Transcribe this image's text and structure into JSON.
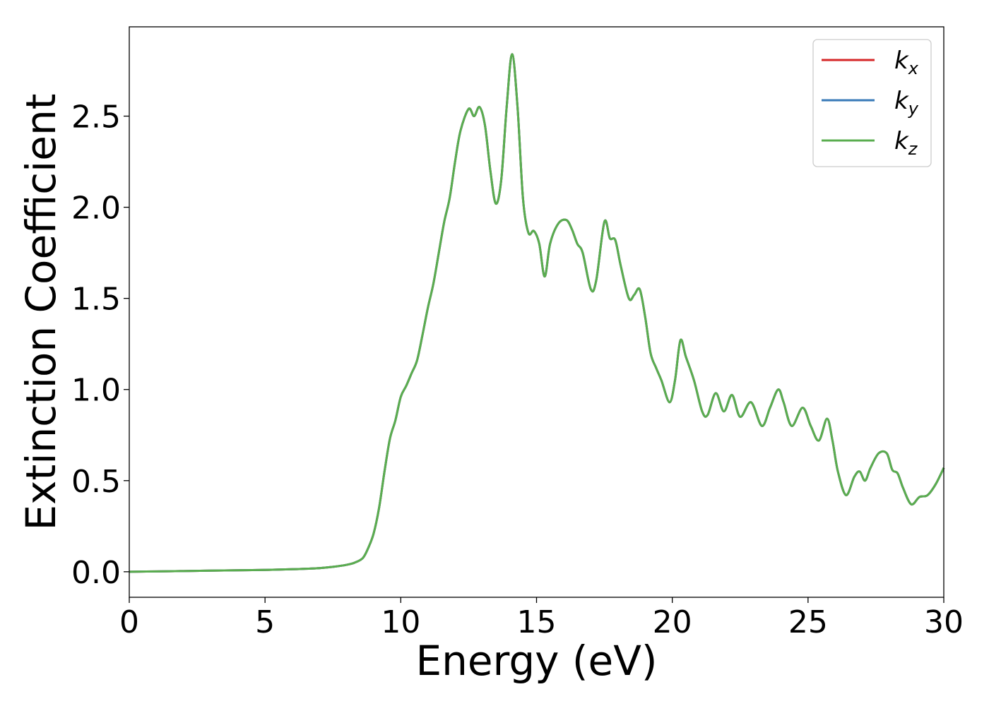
{
  "chart_data": {
    "type": "line",
    "xlabel": "Energy (eV)",
    "ylabel": "Extinction Coefficient",
    "xlim": [
      0,
      30
    ],
    "ylim": [
      -0.14,
      2.99
    ],
    "xticks": [
      0,
      5,
      10,
      15,
      20,
      25,
      30
    ],
    "yticks": [
      0.0,
      0.5,
      1.0,
      1.5,
      2.0,
      2.5
    ],
    "xtick_labels": [
      "0",
      "5",
      "10",
      "15",
      "20",
      "25",
      "30"
    ],
    "ytick_labels": [
      "0.0",
      "0.5",
      "1.0",
      "1.5",
      "2.0",
      "2.5"
    ],
    "grid": false,
    "legend_position": "top-right",
    "series": [
      {
        "name": "k_x",
        "label_main": "k",
        "label_sub": "x",
        "color": "#d62728"
      },
      {
        "name": "k_y",
        "label_main": "k",
        "label_sub": "y",
        "color": "#3a7bb8"
      },
      {
        "name": "k_z",
        "label_main": "k",
        "label_sub": "z",
        "color": "#5aad4f"
      }
    ],
    "x": [
      0,
      1,
      2,
      3,
      4,
      5,
      6,
      7,
      7.5,
      8,
      8.3,
      8.6,
      8.8,
      9.0,
      9.2,
      9.4,
      9.6,
      9.8,
      10.0,
      10.2,
      10.4,
      10.6,
      10.8,
      11.0,
      11.2,
      11.4,
      11.6,
      11.8,
      12.0,
      12.2,
      12.5,
      12.7,
      12.9,
      13.1,
      13.3,
      13.5,
      13.7,
      13.9,
      14.1,
      14.3,
      14.5,
      14.7,
      14.9,
      15.1,
      15.3,
      15.5,
      15.8,
      16.1,
      16.3,
      16.5,
      16.7,
      17.0,
      17.2,
      17.5,
      17.7,
      17.9,
      18.1,
      18.4,
      18.6,
      18.8,
      19.0,
      19.2,
      19.4,
      19.6,
      19.9,
      20.1,
      20.3,
      20.5,
      20.8,
      21.1,
      21.3,
      21.6,
      21.9,
      22.2,
      22.5,
      22.9,
      23.3,
      23.6,
      23.9,
      24.1,
      24.4,
      24.8,
      25.1,
      25.4,
      25.7,
      25.9,
      26.1,
      26.4,
      26.7,
      26.9,
      27.1,
      27.3,
      27.6,
      27.9,
      28.1,
      28.3,
      28.5,
      28.8,
      29.1,
      29.4,
      29.7,
      30.0
    ],
    "values": [
      0.0,
      0.002,
      0.004,
      0.006,
      0.008,
      0.01,
      0.014,
      0.02,
      0.027,
      0.038,
      0.05,
      0.075,
      0.13,
      0.21,
      0.35,
      0.55,
      0.73,
      0.83,
      0.96,
      1.02,
      1.09,
      1.16,
      1.3,
      1.45,
      1.58,
      1.75,
      1.92,
      2.05,
      2.25,
      2.42,
      2.54,
      2.5,
      2.55,
      2.45,
      2.2,
      2.02,
      2.15,
      2.55,
      2.84,
      2.55,
      2.05,
      1.86,
      1.87,
      1.8,
      1.62,
      1.8,
      1.91,
      1.93,
      1.88,
      1.8,
      1.75,
      1.55,
      1.6,
      1.92,
      1.83,
      1.82,
      1.68,
      1.5,
      1.52,
      1.55,
      1.4,
      1.2,
      1.12,
      1.05,
      0.93,
      1.05,
      1.27,
      1.18,
      1.05,
      0.88,
      0.86,
      0.98,
      0.88,
      0.97,
      0.85,
      0.93,
      0.8,
      0.9,
      1.0,
      0.93,
      0.8,
      0.9,
      0.8,
      0.72,
      0.84,
      0.72,
      0.55,
      0.42,
      0.52,
      0.55,
      0.5,
      0.57,
      0.65,
      0.65,
      0.56,
      0.54,
      0.46,
      0.37,
      0.41,
      0.42,
      0.48,
      0.57
    ]
  }
}
